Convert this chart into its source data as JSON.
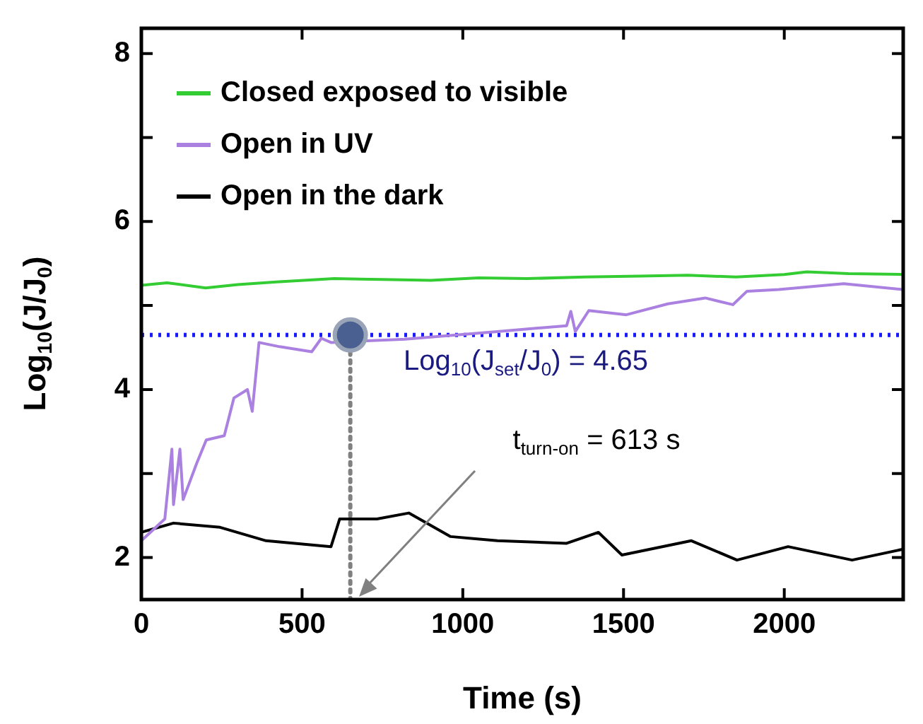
{
  "chart_data": {
    "type": "line",
    "xlabel": "Time (s)",
    "ylabel": "Log$_{10}$(J/J$_{0}$)",
    "xlim": [
      0,
      2370
    ],
    "xticks": [
      0,
      500,
      1000,
      1500,
      2000
    ],
    "ylim": [
      1.5,
      8.3
    ],
    "yticks": [
      2,
      {
        "value": 3,
        "label": null
      },
      4,
      {
        "value": 5,
        "label": null
      },
      6,
      {
        "value": 7,
        "label": null
      },
      8
    ],
    "grid": false,
    "legend": "top left",
    "series": [
      {
        "name": "Closed exposed to visible",
        "color": "#33cc33",
        "x": [
          0,
          80,
          200,
          300,
          420,
          600,
          750,
          900,
          1050,
          1200,
          1380,
          1550,
          1700,
          1850,
          2000,
          2070,
          2200,
          2370
        ],
        "values": [
          5.24,
          5.27,
          5.21,
          5.25,
          5.28,
          5.32,
          5.31,
          5.3,
          5.33,
          5.32,
          5.34,
          5.35,
          5.36,
          5.34,
          5.37,
          5.4,
          5.38,
          5.37
        ]
      },
      {
        "name": "Open in UV",
        "color": "#aa80e0",
        "x": [
          0,
          73,
          95,
          100,
          120,
          130,
          172,
          202,
          258,
          288,
          330,
          345,
          366,
          430,
          530,
          560,
          590,
          647,
          820,
          1107,
          1323,
          1336,
          1350,
          1392,
          1509,
          1638,
          1754,
          1840,
          1884,
          1983,
          2185,
          2370
        ],
        "values": [
          2.2,
          2.46,
          3.29,
          2.63,
          3.29,
          2.69,
          3.12,
          3.4,
          3.45,
          3.9,
          4.0,
          3.74,
          4.56,
          4.51,
          4.45,
          4.61,
          4.56,
          null,
          4.6,
          4.69,
          4.76,
          4.93,
          4.69,
          4.94,
          4.89,
          5.02,
          5.09,
          5.01,
          5.17,
          5.19,
          5.26,
          5.19
        ]
      },
      {
        "name": "Open in the dark",
        "color": "#000000",
        "x": [
          0,
          100,
          245,
          388,
          590,
          617,
          733,
          832,
          962,
          1108,
          1323,
          1422,
          1495,
          1711,
          1853,
          2012,
          2211,
          2370
        ],
        "values": [
          2.3,
          2.41,
          2.36,
          2.2,
          2.13,
          2.46,
          2.46,
          2.53,
          2.25,
          2.2,
          2.17,
          2.3,
          2.03,
          2.2,
          1.97,
          2.13,
          1.97,
          2.1
        ]
      },
      {
        "type": "line",
        "color": "#808080",
        "line_style": "dotted",
        "x": [
          650,
          650
        ],
        "values": [
          4.65,
          1.5
        ]
      },
      {
        "type": "scatter",
        "color": "#4a6090",
        "marker": "circle",
        "x": [
          650
        ],
        "values": [
          4.65
        ]
      }
    ],
    "ref_lines": [
      {
        "axis": "y",
        "value": 4.65,
        "color": "#1a1aff",
        "line_style": "dotted"
      }
    ],
    "annotations": [
      "Log$_{10}$(J$_{set}$/J$_{0}$) = 4.65",
      "t$_{turn-on}$ = 613 s"
    ]
  }
}
